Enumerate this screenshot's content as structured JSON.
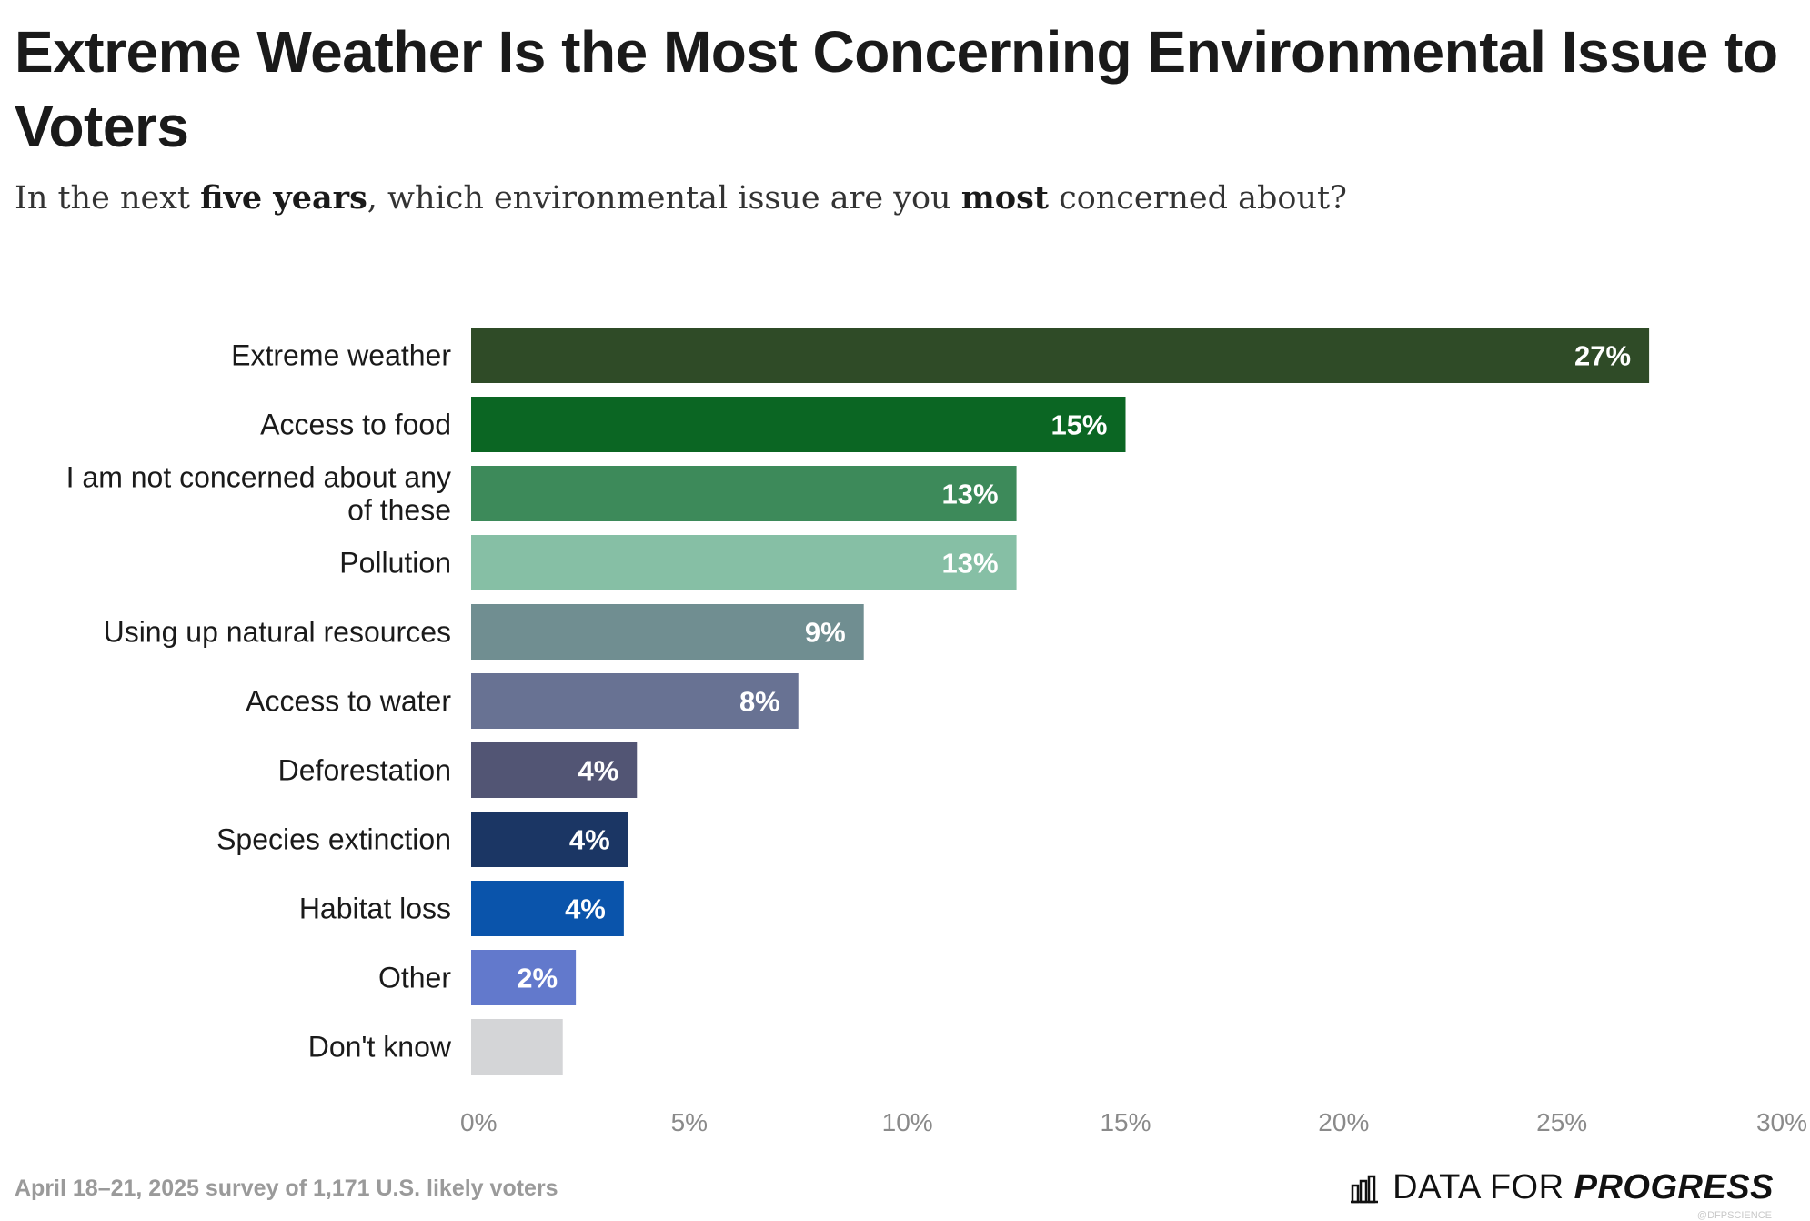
{
  "header": {
    "title": "Extreme Weather Is the Most Concerning Environmental Issue to Voters",
    "subtitle_parts": [
      "In the next ",
      "five years",
      ", which environmental issue are you ",
      "most",
      " concerned about?"
    ]
  },
  "chart_data": {
    "type": "bar",
    "orientation": "horizontal",
    "categories": [
      [
        "Extreme weather"
      ],
      [
        "Access to food"
      ],
      [
        "I am not concerned about any",
        "of these"
      ],
      [
        "Pollution"
      ],
      [
        "Using up natural resources"
      ],
      [
        "Access to water"
      ],
      [
        "Deforestation"
      ],
      [
        "Species extinction"
      ],
      [
        "Habitat loss"
      ],
      [
        "Other"
      ],
      [
        "Don't know"
      ]
    ],
    "values": [
      27,
      15,
      12.5,
      12.5,
      9,
      7.5,
      3.8,
      3.6,
      3.5,
      2.4,
      2.1
    ],
    "value_labels": [
      "27%",
      "15%",
      "13%",
      "13%",
      "9%",
      "8%",
      "4%",
      "4%",
      "4%",
      "2%",
      ""
    ],
    "colors": [
      "#2f4b27",
      "#0b6623",
      "#3d8a5a",
      "#86bfa5",
      "#708e91",
      "#687293",
      "#525574",
      "#1b3664",
      "#0a54ab",
      "#6279cc",
      "#d4d5d7"
    ],
    "xaxis": {
      "ticks": [
        0,
        5,
        10,
        15,
        20,
        25,
        30
      ],
      "tick_labels": [
        "0%",
        "5%",
        "10%",
        "15%",
        "20%",
        "25%",
        "30%"
      ],
      "xlim": [
        0,
        30
      ]
    },
    "grid": false,
    "legend": "none"
  },
  "footer": {
    "note": "April 18–21, 2025 survey of 1,171 U.S. likely voters",
    "logo_plain": "DATA FOR ",
    "logo_strong": "PROGRESS",
    "credit": "@DFPSCIENCE"
  },
  "logo_icon": "bar-chart-icon"
}
